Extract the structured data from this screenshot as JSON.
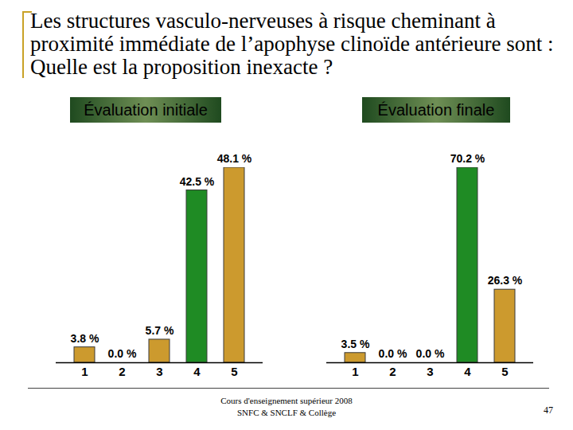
{
  "title": "Les structures vasculo-nerveuses à risque cheminant à proximité immédiate de l’apophyse clinoïde antérieure sont : Quelle est la proposition inexacte ?",
  "footer": [
    "Cours d'enseignement supérieur 2008",
    "SNFC & SNCLF & Collège"
  ],
  "page_number": "47",
  "chart_data": [
    {
      "type": "bar",
      "title": "Évaluation initiale",
      "categories": [
        "1",
        "2",
        "3",
        "4",
        "5"
      ],
      "values": [
        3.8,
        0.0,
        5.7,
        42.5,
        48.1
      ],
      "value_labels": [
        "3.8 %",
        "0.0 %",
        "5.7 %",
        "42.5 %",
        "48.1 %"
      ],
      "colors": [
        "#cc9a2e",
        "#cc9a2e",
        "#cc9a2e",
        "#1f8b24",
        "#cc9a2e"
      ],
      "ylim": [
        0,
        48.1
      ],
      "data_labels": true,
      "tick_labels": "x"
    },
    {
      "type": "bar",
      "title": "Évaluation finale",
      "categories": [
        "1",
        "2",
        "3",
        "4",
        "5"
      ],
      "values": [
        3.5,
        0.0,
        0.0,
        70.2,
        26.3
      ],
      "value_labels": [
        "3.5 %",
        "0.0 %",
        "0.0 %",
        "70.2 %",
        "26.3 %"
      ],
      "colors": [
        "#cc9a2e",
        "#cc9a2e",
        "#cc9a2e",
        "#1f8b24",
        "#cc9a2e"
      ],
      "ylim": [
        0,
        70.2
      ],
      "data_labels": true,
      "tick_labels": "x"
    }
  ]
}
